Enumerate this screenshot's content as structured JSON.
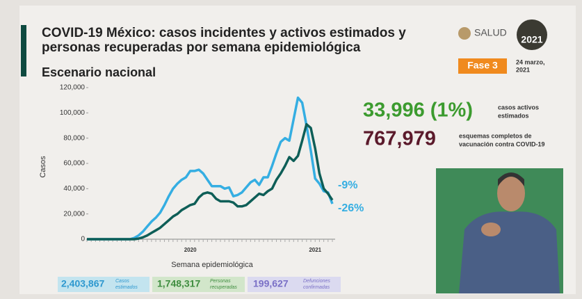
{
  "chart_data": {
    "type": "line",
    "title": "COVID-19 México: casos incidentes y activos estimados y",
    "title_line2": "personas recuperadas por semana epidemiológica",
    "subtitle": "Escenario nacional",
    "y_label": "Casos",
    "x_label": "Semana epidemiológica",
    "categories": [
      null,
      null,
      null,
      null,
      null,
      null,
      null,
      null,
      null,
      null,
      null,
      null,
      null,
      null,
      null,
      null,
      null,
      null,
      null,
      null,
      null,
      null,
      null,
      null,
      "2020",
      null,
      null,
      null,
      null,
      null,
      null,
      null,
      null,
      null,
      null,
      null,
      null,
      null,
      null,
      null,
      null,
      null,
      null,
      null,
      null,
      null,
      null,
      null,
      null,
      null,
      null,
      null,
      null,
      "2021",
      null,
      null,
      null,
      null
    ],
    "series": [
      {
        "color": "#35aee2",
        "values": [
          0,
          0,
          0,
          0,
          0,
          0,
          0,
          0,
          0,
          0,
          0,
          1000,
          3000,
          6000,
          10000,
          14000,
          17000,
          21000,
          27000,
          34000,
          40000,
          44000,
          47000,
          49000,
          54000,
          54000,
          55000,
          52000,
          47000,
          42000,
          42000,
          42000,
          40000,
          41000,
          34000,
          35000,
          37000,
          41000,
          45000,
          47000,
          43000,
          49000,
          49000,
          58000,
          68000,
          77000,
          80000,
          78000,
          95000,
          112000,
          108000,
          90000,
          70000,
          48000,
          44000,
          38000,
          37000,
          28000
        ]
      },
      {
        "color": "#0e5e57",
        "values": [
          0,
          0,
          0,
          0,
          0,
          0,
          0,
          0,
          0,
          0,
          0,
          0,
          500,
          1500,
          3000,
          5000,
          7000,
          9000,
          12000,
          15000,
          18000,
          20000,
          23000,
          25000,
          27000,
          28000,
          33000,
          36000,
          37000,
          36000,
          32000,
          30000,
          30000,
          30000,
          29000,
          26000,
          26000,
          27000,
          30000,
          33000,
          36000,
          35000,
          38000,
          40000,
          47000,
          52000,
          58000,
          65000,
          62000,
          66000,
          78000,
          91000,
          88000,
          72000,
          52000,
          40000,
          36000,
          31000
        ]
      }
    ],
    "annotations": [
      "-9%",
      "-26%"
    ],
    "ylim": [
      0,
      120000
    ],
    "yticks": [
      0,
      {
        "value": 20000,
        "label": "20,000"
      },
      {
        "value": 40000,
        "label": "40,000"
      },
      {
        "value": 60000,
        "label": "60,000"
      },
      {
        "value": 80000,
        "label": "80,000"
      },
      {
        "value": 100000,
        "label": "100,000"
      },
      {
        "value": 120000,
        "label": "120,000"
      }
    ]
  },
  "header": {
    "logo": "SALUD",
    "badge": "2021",
    "phase": "Fase 3",
    "date_line1": "24 marzo,",
    "date_line2": "2021"
  },
  "stats": [
    {
      "value": "33,996 (1%)",
      "label_line1": "casos activos",
      "label_line2": "estimados"
    },
    {
      "value": "767,979",
      "label_line1": "esquemas completos de",
      "label_line2": "vacunación contra COVID-19"
    }
  ],
  "footer": [
    {
      "value": "2,403,867",
      "label_line1": "Casos",
      "label_line2": "estimados"
    },
    {
      "value": "1,748,317",
      "label_line1": "Personas",
      "label_line2": "recuperadas"
    },
    {
      "value": "199,627",
      "label_line1": "Defunciones",
      "label_line2": "confirmadas"
    }
  ]
}
